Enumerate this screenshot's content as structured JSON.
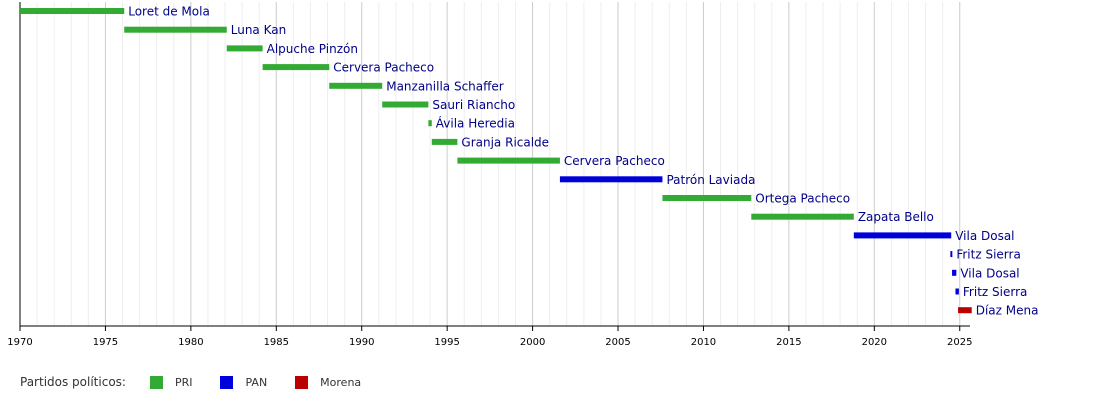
{
  "chart_data": {
    "type": "timeline",
    "title": "",
    "xlabel": "",
    "ylabel": "",
    "xlim": [
      1970,
      2025.6
    ],
    "x_ticks": [
      1970,
      1975,
      1980,
      1985,
      1990,
      1995,
      2000,
      2005,
      2010,
      2015,
      2020,
      2025
    ],
    "grid": true,
    "minor_grid_step": 1,
    "party_colors": {
      "PRI": "#33aa33",
      "PAN": "#0000dd",
      "Morena": "#bb0000"
    },
    "bars": [
      {
        "label": "Loret de Mola",
        "start": 1970.0,
        "end": 1976.1,
        "party": "PRI"
      },
      {
        "label": "Luna Kan",
        "start": 1976.1,
        "end": 1982.1,
        "party": "PRI"
      },
      {
        "label": "Alpuche Pinzón",
        "start": 1982.1,
        "end": 1984.2,
        "party": "PRI"
      },
      {
        "label": "Cervera Pacheco",
        "start": 1984.2,
        "end": 1988.1,
        "party": "PRI"
      },
      {
        "label": "Manzanilla Schaffer",
        "start": 1988.1,
        "end": 1991.2,
        "party": "PRI"
      },
      {
        "label": "Sauri Riancho",
        "start": 1991.2,
        "end": 1993.9,
        "party": "PRI"
      },
      {
        "label": "Ávila Heredia",
        "start": 1993.9,
        "end": 1994.1,
        "party": "PRI"
      },
      {
        "label": "Granja Ricalde",
        "start": 1994.1,
        "end": 1995.6,
        "party": "PRI"
      },
      {
        "label": "Cervera Pacheco",
        "start": 1995.6,
        "end": 2001.6,
        "party": "PRI"
      },
      {
        "label": "Patrón Laviada",
        "start": 2001.6,
        "end": 2007.6,
        "party": "PAN"
      },
      {
        "label": "Ortega Pacheco",
        "start": 2007.6,
        "end": 2012.8,
        "party": "PRI"
      },
      {
        "label": "Zapata Bello",
        "start": 2012.8,
        "end": 2018.8,
        "party": "PRI"
      },
      {
        "label": "Vila Dosal",
        "start": 2018.8,
        "end": 2024.5,
        "party": "PAN"
      },
      {
        "label": "Fritz Sierra",
        "start": 2024.45,
        "end": 2024.55,
        "party": "PAN"
      },
      {
        "label": "Vila Dosal",
        "start": 2024.55,
        "end": 2024.8,
        "party": "PAN"
      },
      {
        "label": "Fritz Sierra",
        "start": 2024.75,
        "end": 2024.95,
        "party": "PAN"
      },
      {
        "label": "Díaz Mena",
        "start": 2024.9,
        "end": 2025.7,
        "party": "Morena"
      }
    ]
  },
  "legend": {
    "title": "Partidos políticos:",
    "items": [
      {
        "label": "PRI",
        "color": "#33aa33"
      },
      {
        "label": "PAN",
        "color": "#0000dd"
      },
      {
        "label": "Morena",
        "color": "#bb0000"
      }
    ]
  }
}
